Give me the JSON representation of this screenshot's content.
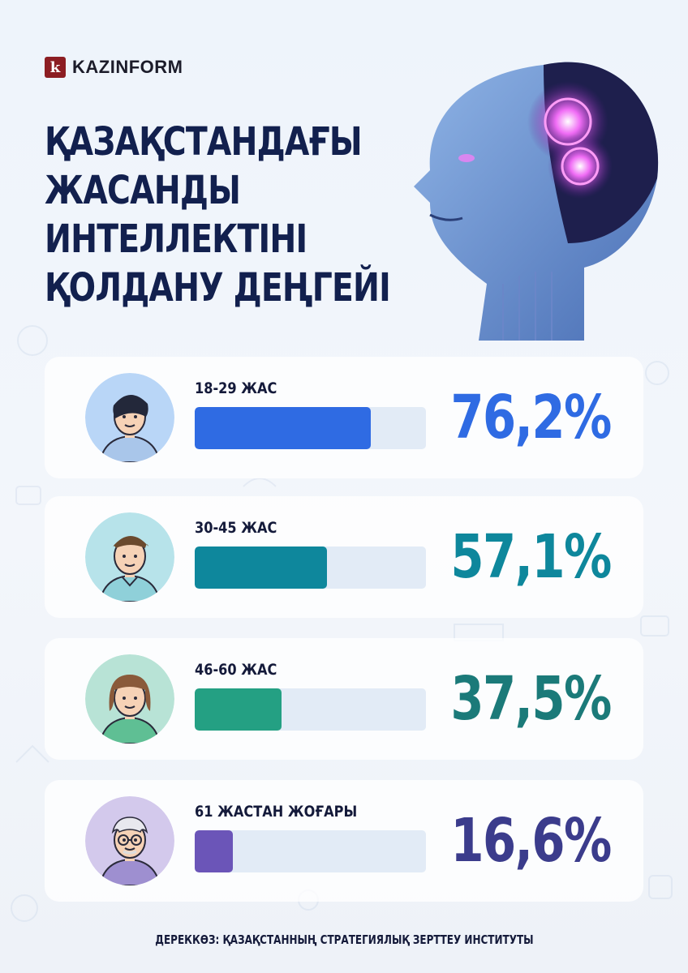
{
  "brand": {
    "logo_letter": "k",
    "name": "KAZINFORM"
  },
  "title_lines": [
    "ҚАЗАҚСТАНДАҒЫ",
    "ЖАСАНДЫ",
    "ИНТЕЛЛЕКТІНІ",
    "ҚОЛДАНУ ДЕҢГЕЙІ"
  ],
  "chart_data": {
    "type": "bar",
    "orientation": "horizontal",
    "title": "ҚАЗАҚСТАНДАҒЫ ЖАСАНДЫ ИНТЕЛЛЕКТІНІ ҚОЛДАНУ ДЕҢГЕЙІ",
    "xlim": [
      0,
      100
    ],
    "grid": false,
    "categories": [
      "18-29 ЖАС",
      "30-45 ЖАС",
      "46-60 ЖАС",
      "61 ЖАСТАН ЖОҒАРЫ"
    ],
    "values": [
      76.2,
      57.1,
      37.5,
      16.6
    ],
    "value_labels": [
      "76,2%",
      "57,1%",
      "37,5%",
      "16,6%"
    ],
    "unit": "%"
  },
  "rows": [
    {
      "avatar_icon": "young-man-avatar-icon",
      "bar_color": "#2f6be3",
      "value_color": "#2f6be3",
      "circle_color": "#b9d6f7"
    },
    {
      "avatar_icon": "man-avatar-icon",
      "bar_color": "#0e879c",
      "value_color": "#0e879c",
      "circle_color": "#b7e3ea"
    },
    {
      "avatar_icon": "woman-avatar-icon",
      "bar_color": "#24a083",
      "value_color": "#1b7a79",
      "circle_color": "#b8e3d6"
    },
    {
      "avatar_icon": "elderly-man-avatar-icon",
      "bar_color": "#6b55b8",
      "value_color": "#3b3c8c",
      "circle_color": "#d3c9ec"
    }
  ],
  "source": "ДЕРЕККӨЗ: ҚАЗАҚСТАННЫҢ СТРАТЕГИЯЛЫҚ ЗЕРТТЕУ ИНСТИТУТЫ"
}
